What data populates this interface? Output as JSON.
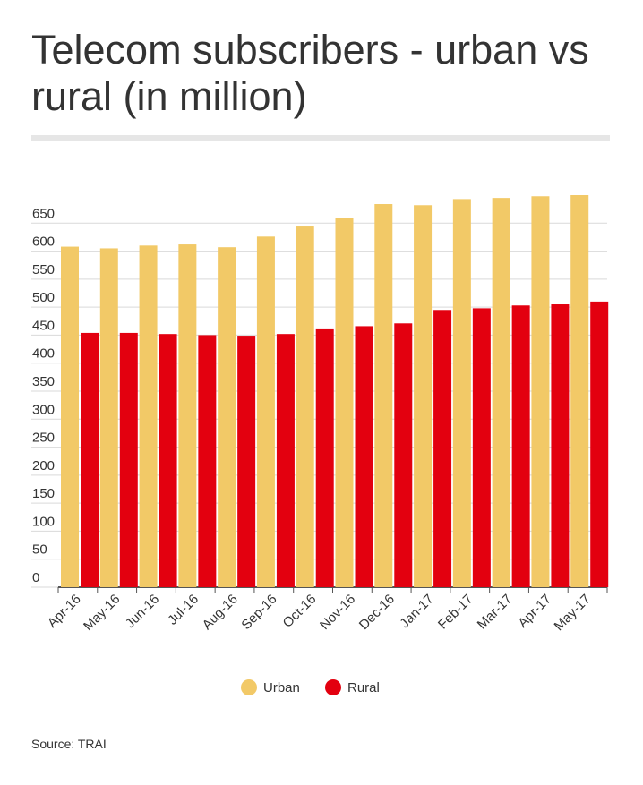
{
  "chart_data": {
    "type": "bar",
    "title": "Telecom subscribers - urban vs rural (in million)",
    "categories": [
      "Apr-16",
      "May-16",
      "Jun-16",
      "Jul-16",
      "Aug-16",
      "Sep-16",
      "Oct-16",
      "Nov-16",
      "Dec-16",
      "Jan-17",
      "Feb-17",
      "Mar-17",
      "Apr-17",
      "May-17"
    ],
    "series": [
      {
        "name": "Urban",
        "color": "#f2c967",
        "values": [
          608,
          605,
          610,
          612,
          607,
          626,
          644,
          660,
          684,
          682,
          693,
          695,
          698,
          700
        ]
      },
      {
        "name": "Rural",
        "color": "#e3000f",
        "values": [
          454,
          454,
          452,
          450,
          449,
          452,
          462,
          466,
          471,
          495,
          498,
          503,
          505,
          510
        ]
      }
    ],
    "ylim": [
      0,
      700
    ],
    "yticks": [
      0,
      50,
      100,
      150,
      200,
      250,
      300,
      350,
      400,
      450,
      500,
      550,
      600,
      650
    ],
    "grid": true,
    "source": "Source: TRAI"
  }
}
